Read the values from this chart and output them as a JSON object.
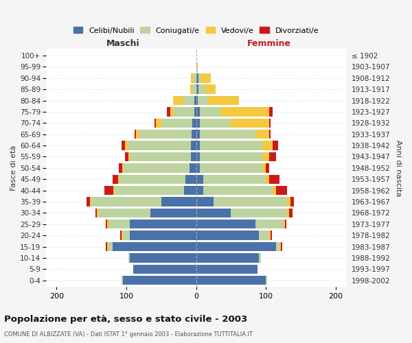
{
  "age_groups": [
    "0-4",
    "5-9",
    "10-14",
    "15-19",
    "20-24",
    "25-29",
    "30-34",
    "35-39",
    "40-44",
    "45-49",
    "50-54",
    "55-59",
    "60-64",
    "65-69",
    "70-74",
    "75-79",
    "80-84",
    "85-89",
    "90-94",
    "95-99",
    "100+"
  ],
  "birth_years": [
    "1998-2002",
    "1993-1997",
    "1988-1992",
    "1983-1987",
    "1978-1982",
    "1973-1977",
    "1968-1972",
    "1963-1967",
    "1958-1962",
    "1953-1957",
    "1948-1952",
    "1943-1947",
    "1938-1942",
    "1933-1937",
    "1928-1932",
    "1923-1927",
    "1918-1922",
    "1913-1917",
    "1908-1912",
    "1903-1907",
    "≤ 1902"
  ],
  "maschi_celibi": [
    105,
    90,
    95,
    120,
    95,
    95,
    65,
    50,
    17,
    15,
    9,
    7,
    7,
    6,
    5,
    2,
    2,
    0,
    0,
    0,
    0
  ],
  "maschi_coniugati": [
    2,
    0,
    2,
    5,
    10,
    30,
    75,
    100,
    100,
    95,
    95,
    88,
    90,
    75,
    45,
    30,
    16,
    5,
    3,
    0,
    0
  ],
  "maschi_vedovi": [
    0,
    0,
    0,
    2,
    2,
    2,
    2,
    2,
    2,
    2,
    2,
    2,
    5,
    5,
    8,
    5,
    15,
    3,
    4,
    0,
    0
  ],
  "maschi_divorziati": [
    0,
    0,
    0,
    2,
    2,
    2,
    2,
    5,
    12,
    8,
    5,
    5,
    5,
    2,
    2,
    5,
    0,
    0,
    0,
    0,
    0
  ],
  "femmine_nubili": [
    100,
    88,
    90,
    115,
    90,
    85,
    50,
    25,
    10,
    10,
    5,
    5,
    5,
    5,
    5,
    5,
    2,
    3,
    3,
    0,
    0
  ],
  "femmine_coniugate": [
    2,
    0,
    3,
    5,
    15,
    40,
    80,
    105,
    100,
    90,
    90,
    90,
    90,
    80,
    45,
    30,
    15,
    10,
    3,
    0,
    0
  ],
  "femmine_vedove": [
    0,
    0,
    0,
    2,
    2,
    2,
    3,
    5,
    5,
    5,
    5,
    10,
    15,
    20,
    55,
    70,
    45,
    15,
    15,
    2,
    0
  ],
  "femmine_divorziate": [
    0,
    0,
    0,
    2,
    2,
    2,
    5,
    5,
    15,
    15,
    5,
    10,
    8,
    2,
    2,
    5,
    0,
    0,
    0,
    0,
    0
  ],
  "color_celibi": "#4a72a8",
  "color_coniugati": "#bdd4a0",
  "color_vedovi": "#f5c842",
  "color_divorziati": "#cc1a1a",
  "title": "Popolazione per età, sesso e stato civile - 2003",
  "subtitle": "COMUNE DI ALBIZZATE (VA) - Dati ISTAT 1° gennaio 2003 - Elaborazione TUTTITALIA.IT",
  "legend_labels": [
    "Celibi/Nubili",
    "Coniugati/e",
    "Vedovi/e",
    "Divorziati/e"
  ],
  "bg_color": "#f5f5f5",
  "plot_bg": "#ffffff",
  "xlim": [
    -215,
    215
  ],
  "xtick_vals": [
    -200,
    -100,
    0,
    100,
    200
  ]
}
